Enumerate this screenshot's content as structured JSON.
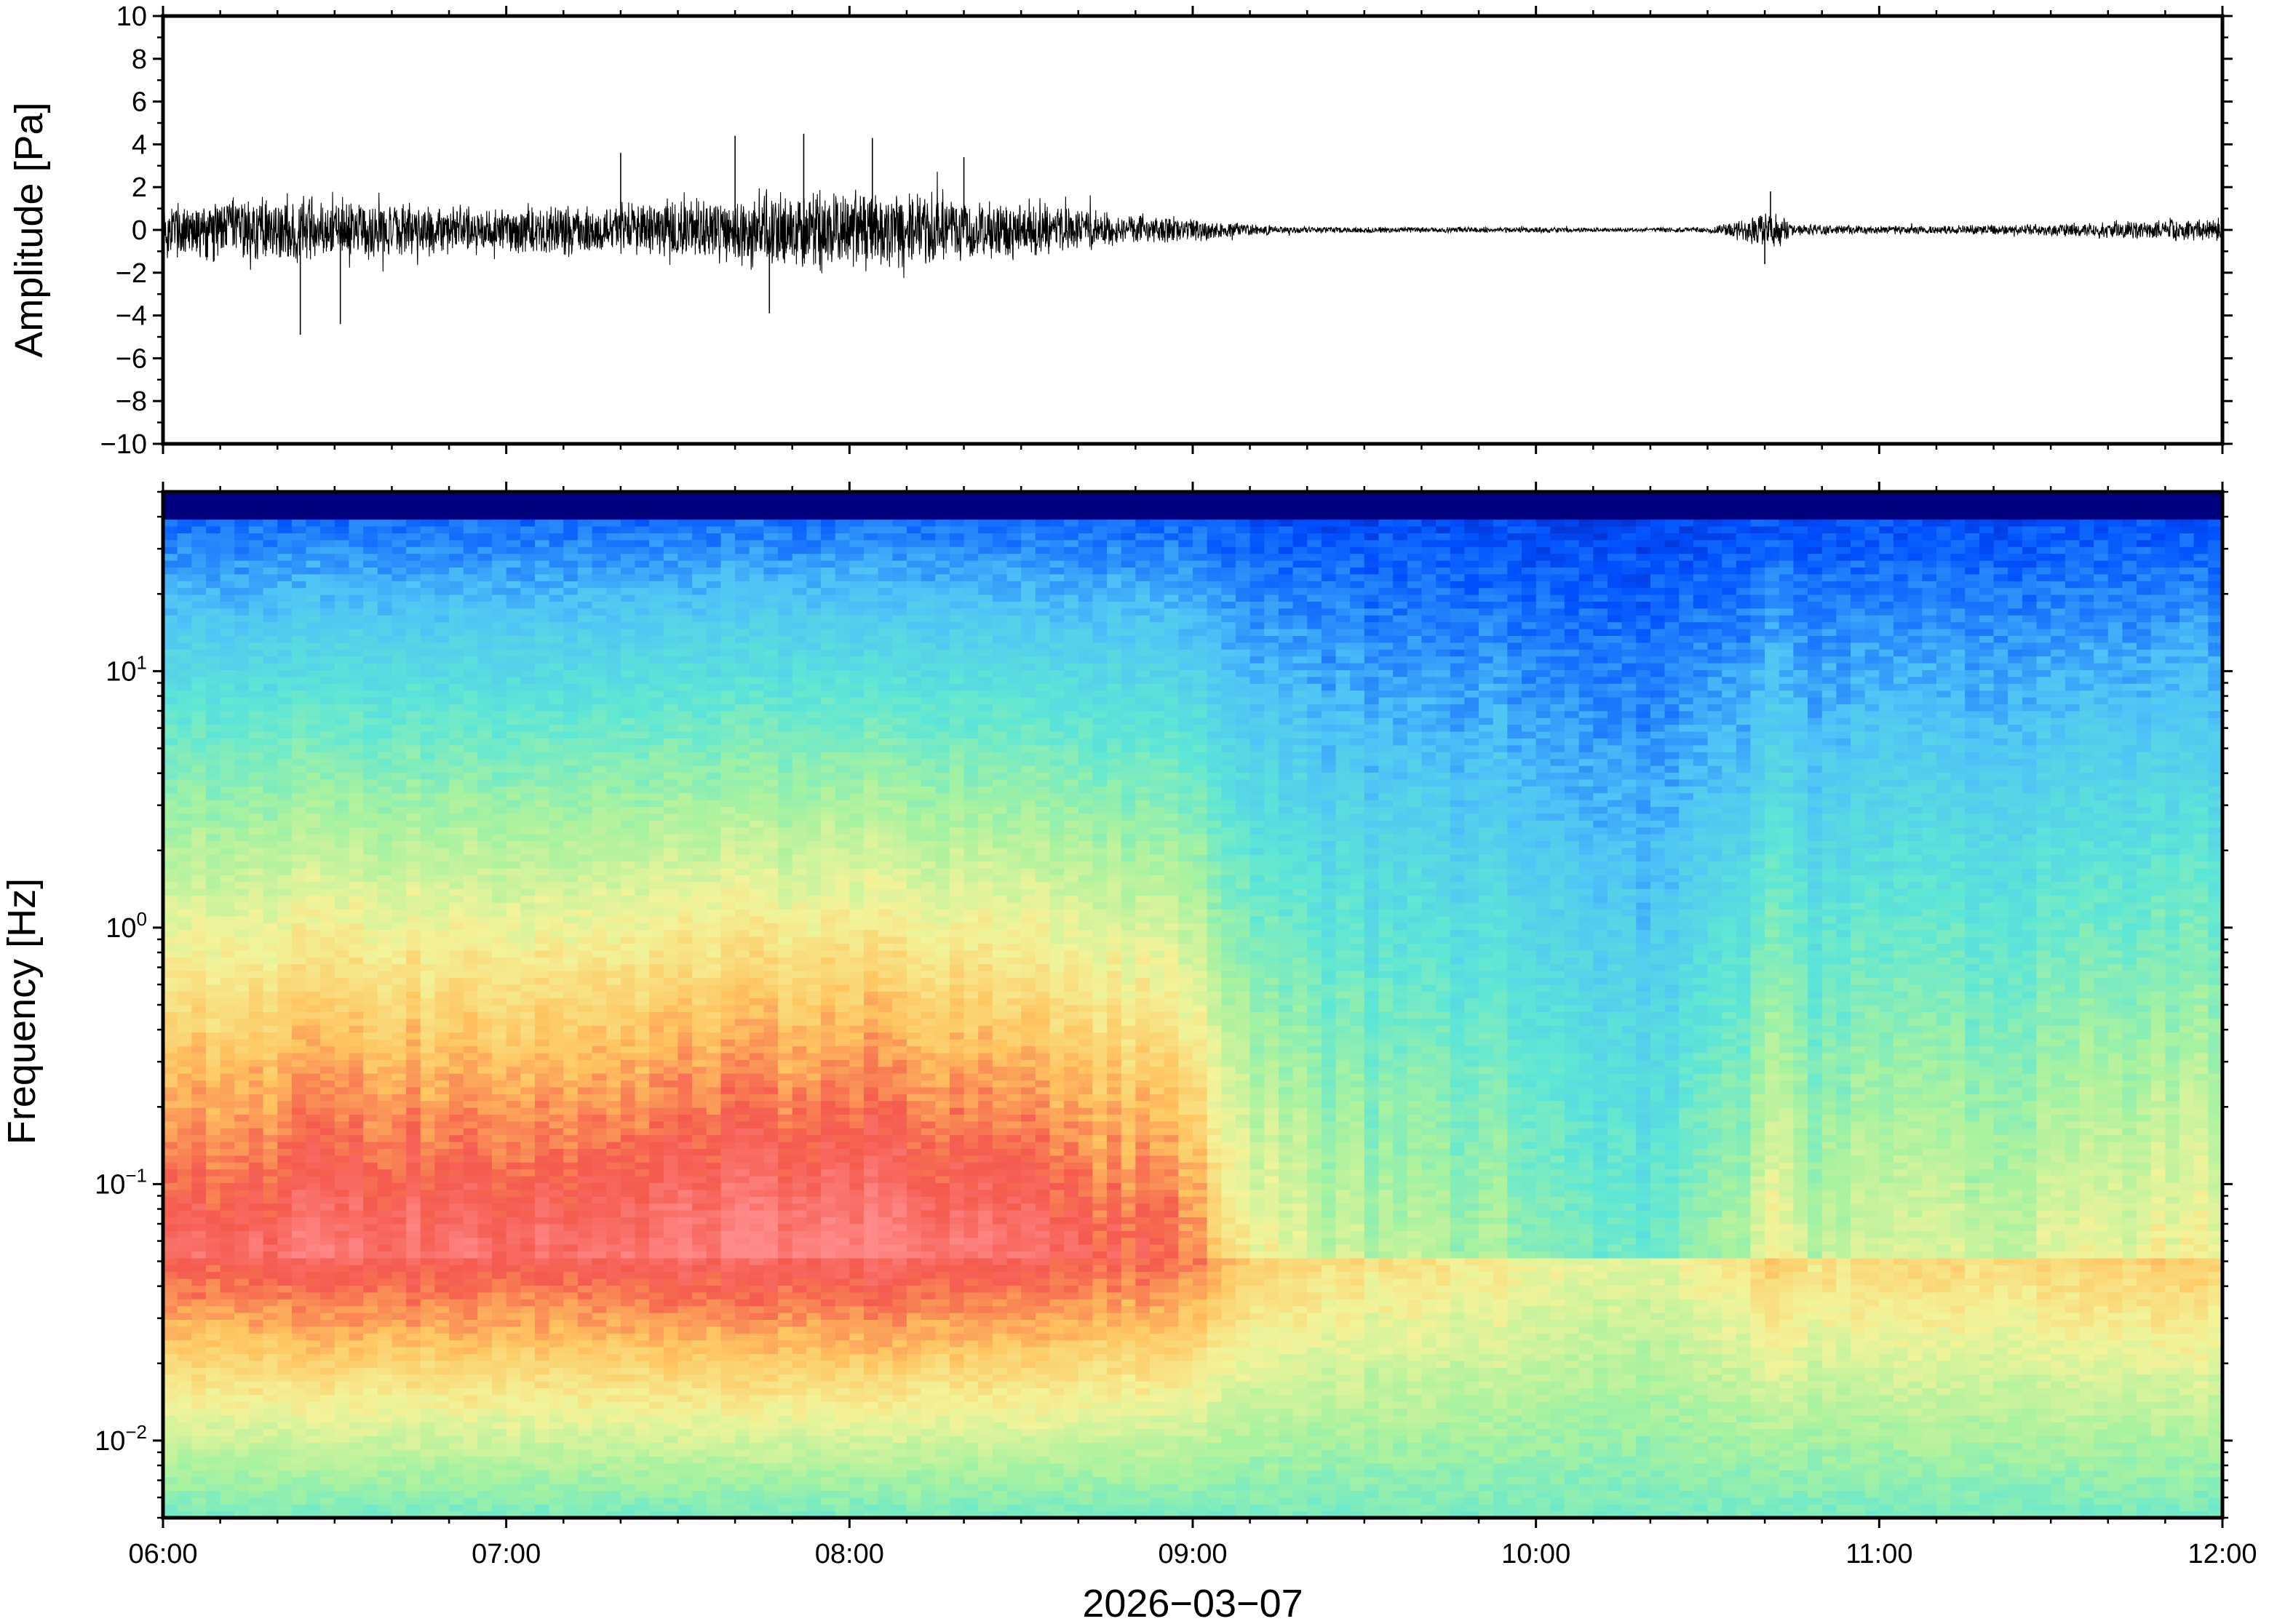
{
  "chart_data": [
    {
      "type": "line",
      "name": "waveform",
      "ylabel": "Amplitude [Pa]",
      "ylim": [
        -10,
        10
      ],
      "y_ticks": [
        10,
        8,
        6,
        4,
        2,
        0,
        -2,
        -4,
        -6,
        -8,
        -10
      ],
      "y_tick_labels": [
        "10",
        "8",
        "6",
        "4",
        "2",
        "0",
        "−2",
        "−4",
        "−6",
        "−8",
        "−10"
      ],
      "x_range": [
        "06:00",
        "12:00"
      ],
      "line_color": "#000000",
      "grid": false,
      "envelope": {
        "x_hours": [
          6.0,
          6.25,
          6.5,
          6.75,
          7.0,
          7.25,
          7.5,
          7.75,
          8.0,
          8.25,
          8.5,
          8.75,
          9.0,
          9.25,
          9.5,
          9.75,
          10.0,
          10.25,
          10.5,
          10.65,
          10.7,
          10.75,
          11.0,
          11.25,
          11.5,
          11.75,
          12.0
        ],
        "amplitude": [
          1.5,
          1.7,
          1.6,
          1.3,
          1.2,
          1.3,
          1.5,
          2.1,
          2.0,
          1.9,
          1.5,
          0.9,
          0.6,
          0.2,
          0.15,
          0.15,
          0.15,
          0.1,
          0.15,
          0.8,
          1.0,
          0.3,
          0.2,
          0.25,
          0.3,
          0.5,
          0.6
        ]
      },
      "spikes": [
        {
          "t": "06:24",
          "value": -4.9
        },
        {
          "t": "06:31",
          "value": -4.4
        },
        {
          "t": "07:20",
          "value": 3.6
        },
        {
          "t": "07:40",
          "value": 4.4
        },
        {
          "t": "07:46",
          "value": -3.9
        },
        {
          "t": "07:52",
          "value": 4.5
        },
        {
          "t": "08:04",
          "value": 4.3
        },
        {
          "t": "08:20",
          "value": 3.4
        },
        {
          "t": "10:41",
          "value": 1.8
        },
        {
          "t": "10:40",
          "value": -1.6
        }
      ]
    },
    {
      "type": "heatmap",
      "name": "spectrogram",
      "ylabel": "Frequency [Hz]",
      "yscale": "log",
      "ylim": [
        0.005,
        50
      ],
      "y_ticks": [
        0.01,
        0.1,
        1,
        10
      ],
      "y_tick_labels": [
        {
          "base": "10",
          "exp": "−2"
        },
        {
          "base": "10",
          "exp": "−1"
        },
        {
          "base": "10",
          "exp": "0"
        },
        {
          "base": "10",
          "exp": "1"
        }
      ],
      "xlabel": "2026−03−07",
      "x_ticks": [
        "06:00",
        "07:00",
        "08:00",
        "09:00",
        "10:00",
        "11:00",
        "12:00"
      ],
      "x_range": [
        "06:00",
        "12:00"
      ],
      "colormap": [
        "#00007f",
        "#0050ff",
        "#4fc3f7",
        "#5ee6d6",
        "#a8f2a0",
        "#f3f39a",
        "#ffc460",
        "#f55a4e",
        "#ff8a8a"
      ],
      "power_profile": {
        "x_hours": [
          6.0,
          6.5,
          7.0,
          7.5,
          8.0,
          8.5,
          9.0,
          9.15,
          9.5,
          10.0,
          10.35,
          10.6,
          10.7,
          10.8,
          11.0,
          11.5,
          12.0
        ],
        "level": [
          0.82,
          0.88,
          0.86,
          0.9,
          0.92,
          0.86,
          0.78,
          0.55,
          0.45,
          0.4,
          0.3,
          0.42,
          0.6,
          0.45,
          0.48,
          0.5,
          0.55
        ]
      },
      "grid": false
    }
  ]
}
